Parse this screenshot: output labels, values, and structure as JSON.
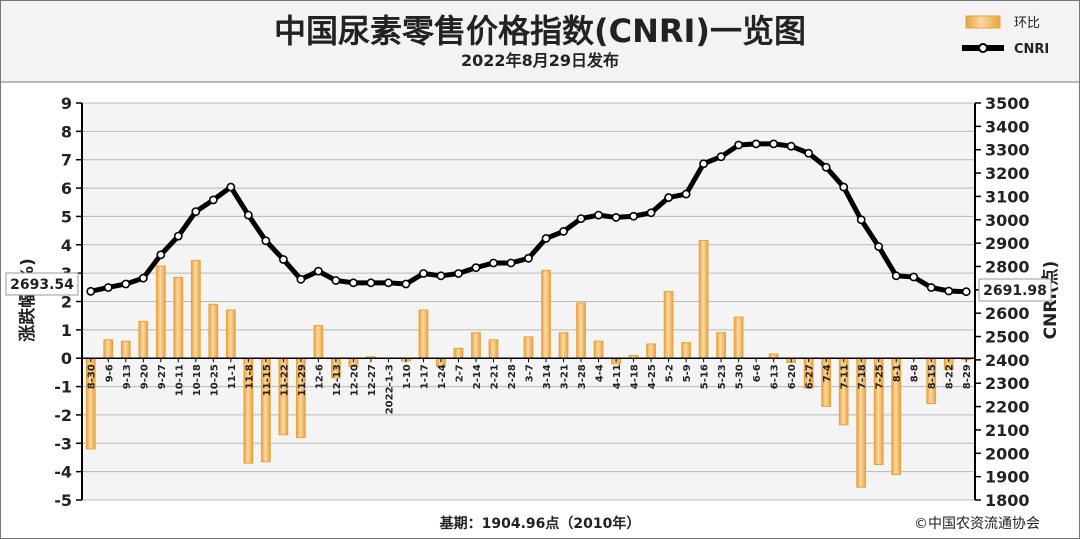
{
  "header": {
    "title": "中国尿素零售价格指数(CNRI)一览图",
    "subtitle": "2022年8月29日发布"
  },
  "legend": {
    "bar_label": "环比",
    "line_label": "CNRI"
  },
  "footer": {
    "base_note": "基期：1904.96点（2010年）",
    "copyright": "©中国农资流通协会"
  },
  "callouts": {
    "start_value": "2693.54",
    "end_value": "2691.98"
  },
  "colors": {
    "bar_fill": "#f6c07a",
    "bar_edge": "#e8a33b",
    "line": "#000000",
    "plot_bg": "#f4f4f4",
    "grid": "#b8b8b8",
    "header_bg": "#f3f3f3"
  },
  "chart_data": {
    "type": "bar",
    "categories": [
      "8-30",
      "9-6",
      "9-13",
      "9-20",
      "9-27",
      "10-11",
      "10-18",
      "10-25",
      "11-1",
      "11-8",
      "11-15",
      "11-22",
      "11-29",
      "12-6",
      "12-13",
      "12-20",
      "12-27",
      "2022-1-3",
      "1-10",
      "1-17",
      "1-24",
      "2-7",
      "2-14",
      "2-21",
      "2-28",
      "3-7",
      "3-14",
      "3-21",
      "3-28",
      "4-4",
      "4-11",
      "4-18",
      "4-25",
      "5-2",
      "5-9",
      "5-16",
      "5-23",
      "5-30",
      "6-6",
      "6-13",
      "6-20",
      "6-27",
      "7-4",
      "7-11",
      "7-18",
      "7-25",
      "8-1",
      "8-8",
      "8-15",
      "8-22",
      "8-29"
    ],
    "series": [
      {
        "name": "环比",
        "type": "bar",
        "axis": "left",
        "values": [
          -3.2,
          0.65,
          0.6,
          1.3,
          3.25,
          2.85,
          3.45,
          1.9,
          1.7,
          -3.7,
          -3.65,
          -2.7,
          -2.8,
          1.15,
          -0.7,
          -0.3,
          0.05,
          0.0,
          -0.1,
          1.7,
          -0.3,
          0.35,
          0.9,
          0.65,
          0.0,
          0.75,
          3.1,
          0.9,
          1.95,
          0.6,
          -0.2,
          0.1,
          0.5,
          2.35,
          0.55,
          4.15,
          0.9,
          1.45,
          0.0,
          0.15,
          -0.15,
          -1.05,
          -1.7,
          -2.35,
          -4.55,
          -3.75,
          -4.1,
          0.0,
          -1.6,
          -0.4,
          -0.05
        ]
      },
      {
        "name": "CNRI",
        "type": "line",
        "axis": "right",
        "values": [
          2693.54,
          2710,
          2725,
          2750,
          2850,
          2930,
          3035,
          3085,
          3140,
          3020,
          2910,
          2830,
          2745,
          2780,
          2740,
          2730,
          2730,
          2730,
          2725,
          2770,
          2760,
          2770,
          2795,
          2815,
          2815,
          2835,
          2920,
          2950,
          3005,
          3020,
          3010,
          3015,
          3030,
          3095,
          3110,
          3240,
          3270,
          3320,
          3325,
          3325,
          3315,
          3285,
          3225,
          3140,
          3000,
          2885,
          2760,
          2755,
          2710,
          2695,
          2691.98
        ]
      }
    ],
    "y_left": {
      "label": "涨跌幅(%)",
      "ticks": [
        -5,
        -4,
        -3,
        -2,
        -1,
        0,
        1,
        2,
        3,
        4,
        5,
        6,
        7,
        8,
        9
      ],
      "ylim": [
        -5,
        9
      ]
    },
    "y_right": {
      "label": "CNRI(点)",
      "ticks": [
        1800,
        1900,
        2000,
        2100,
        2200,
        2300,
        2400,
        2500,
        2600,
        2700,
        2800,
        2900,
        3000,
        3100,
        3200,
        3300,
        3400,
        3500
      ],
      "ylim": [
        1800,
        3500
      ]
    },
    "grid": true,
    "legend_position": "top-right"
  }
}
